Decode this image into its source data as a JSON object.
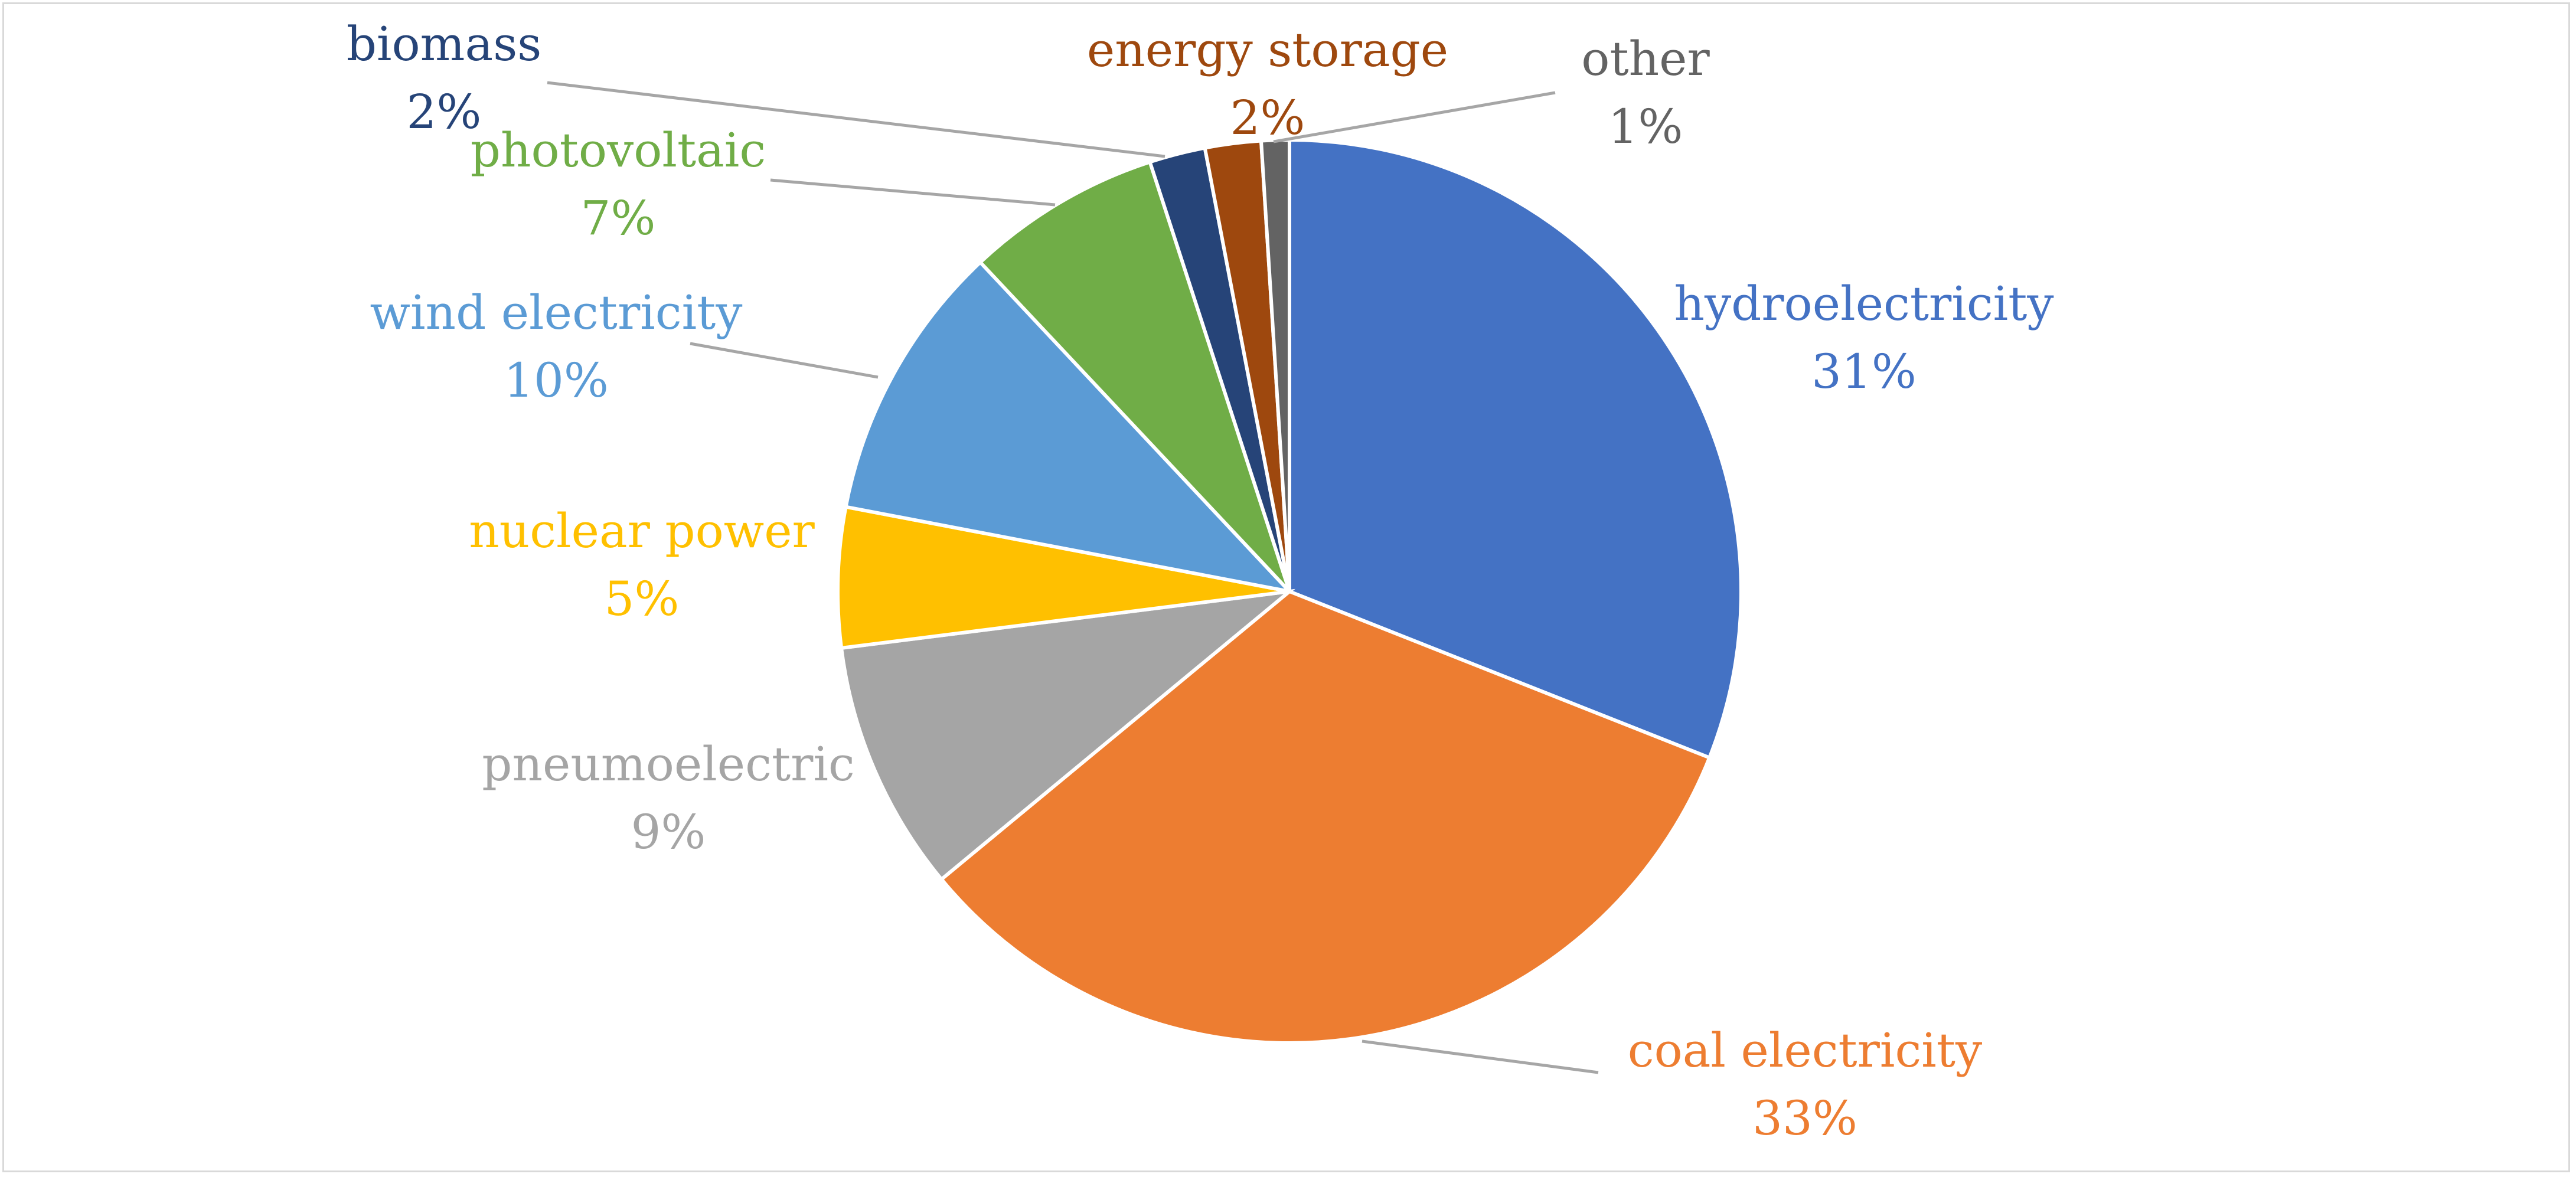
{
  "chart_data": {
    "type": "pie",
    "title": "",
    "slices": [
      {
        "name": "hydroelectricity",
        "value": 31,
        "percent_label": "31%",
        "color": "#4472C4",
        "label_color": "#4472C4"
      },
      {
        "name": "coal electricity",
        "value": 33,
        "percent_label": "33%",
        "color": "#ED7D31",
        "label_color": "#ED7D31"
      },
      {
        "name": "pneumoelectric",
        "value": 9,
        "percent_label": "9%",
        "color": "#A5A5A5",
        "label_color": "#A5A5A5"
      },
      {
        "name": "nuclear power",
        "value": 5,
        "percent_label": "5%",
        "color": "#FFC000",
        "label_color": "#FFC000"
      },
      {
        "name": "wind electricity",
        "value": 10,
        "percent_label": "10%",
        "color": "#5B9BD5",
        "label_color": "#5B9BD5"
      },
      {
        "name": "photovoltaic",
        "value": 7,
        "percent_label": "7%",
        "color": "#70AD47",
        "label_color": "#70AD47"
      },
      {
        "name": "biomass",
        "value": 2,
        "percent_label": "2%",
        "color": "#264478",
        "label_color": "#264478"
      },
      {
        "name": "energy storage",
        "value": 2,
        "percent_label": "2%",
        "color": "#9E480E",
        "label_color": "#9E480E"
      },
      {
        "name": "other",
        "value": 1,
        "percent_label": "1%",
        "color": "#636363",
        "label_color": "#636363"
      }
    ],
    "leader_line_color": "#A6A6A6",
    "start_angle": "12 o'clock",
    "direction": "clockwise"
  }
}
